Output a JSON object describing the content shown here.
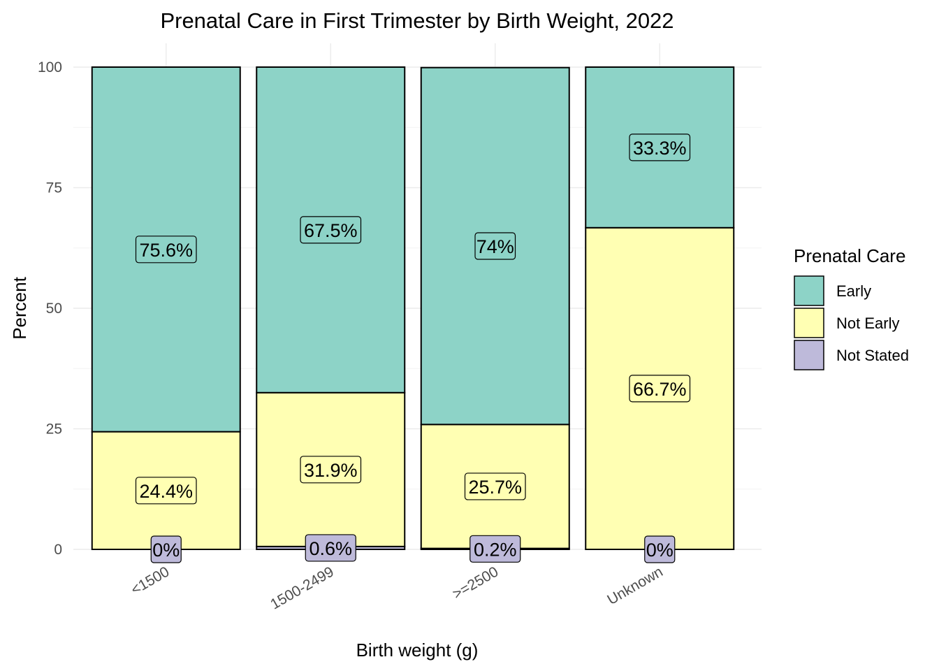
{
  "chart_data": {
    "type": "bar",
    "stacked": true,
    "title": "Prenatal Care in First Trimester by Birth Weight, 2022",
    "xlabel": "Birth weight (g)",
    "ylabel": "Percent",
    "ylim": [
      0,
      100
    ],
    "yticks": [
      0,
      25,
      50,
      75,
      100
    ],
    "grid": true,
    "categories": [
      "<1500",
      "1500-2499",
      ">=2500",
      "Unknown"
    ],
    "series": [
      {
        "name": "Not Stated",
        "color": "#bebada",
        "values": [
          0,
          0.6,
          0.2,
          0
        ],
        "labels": [
          "0%",
          "0.6%",
          "0.2%",
          "0%"
        ]
      },
      {
        "name": "Not Early",
        "color": "#ffffb3",
        "values": [
          24.4,
          31.9,
          25.7,
          66.7
        ],
        "labels": [
          "24.4%",
          "31.9%",
          "25.7%",
          "66.7%"
        ]
      },
      {
        "name": "Early",
        "color": "#8dd3c7",
        "values": [
          75.6,
          67.5,
          74,
          33.3
        ],
        "labels": [
          "75.6%",
          "67.5%",
          "74%",
          "33.3%"
        ]
      }
    ],
    "legend": {
      "title": "Prenatal Care",
      "position": "right",
      "entries": [
        {
          "label": "Early",
          "color": "#8dd3c7"
        },
        {
          "label": "Not Early",
          "color": "#ffffb3"
        },
        {
          "label": "Not Stated",
          "color": "#bebada"
        }
      ]
    }
  }
}
